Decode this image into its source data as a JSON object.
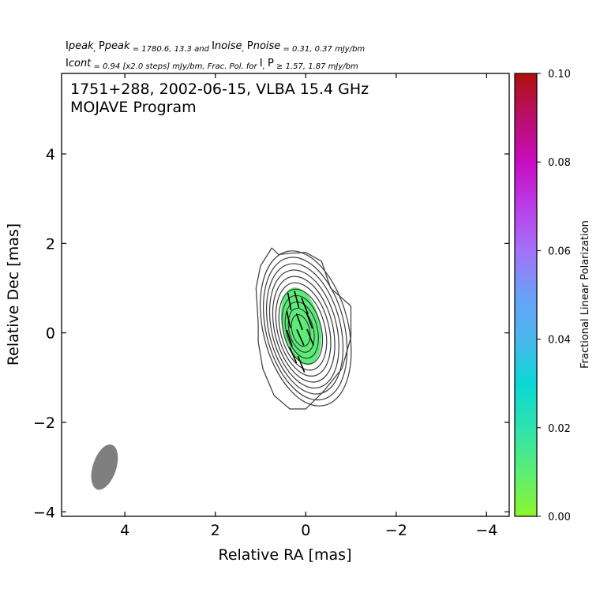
{
  "chart_data": {
    "type": "contour",
    "header": {
      "line1": [
        "I",
        "peak",
        ", ",
        "P",
        "peak",
        " = 1780.6, 13.3 and ",
        "I",
        "noise",
        ", ",
        "P",
        "noise",
        " = 0.31, 0.37 mJy/bm"
      ],
      "line2": [
        "I",
        "cont",
        " = 0.94 [x2.0 steps] mJy/bm, Frac. Pol. for ",
        "I",
        "",
        ", ",
        "P",
        "",
        " ≥ 1.57, 1.87 mJy/bm"
      ]
    },
    "plot_title": {
      "line1": "1751+288, 2002-06-15, VLBA 15.4 GHz",
      "line2": "MOJAVE Program"
    },
    "xlabel": "Relative RA [mas]",
    "ylabel": "Relative Dec [mas]",
    "xlim": [
      5.4,
      -4.5
    ],
    "ylim": [
      -4.1,
      5.8
    ],
    "x_ticks": [
      4,
      2,
      0,
      -2,
      -4
    ],
    "x_tick_labels": [
      "4",
      "2",
      "0",
      "−2",
      "−4"
    ],
    "y_ticks": [
      4,
      2,
      0,
      -2,
      -4
    ],
    "y_tick_labels": [
      "4",
      "2",
      "0",
      "−2",
      "−4"
    ],
    "contour_levels_mJy": [
      0.94,
      1.88,
      3.76,
      7.52,
      15.04,
      30.08,
      60.16,
      120.32,
      240.64,
      481.28,
      962.56
    ],
    "contour_color": "#3a3a3a",
    "beam": {
      "x": 4.45,
      "y": -3.0,
      "major_mas": 1.05,
      "minor_mas": 0.52,
      "pa_deg": -12,
      "color": "#7f7f7f"
    },
    "fractional_polarization_region": {
      "x": 0.1,
      "y": 0.15,
      "value": 0.012,
      "color": "#5aee78"
    },
    "evpa_ticks": [
      {
        "x": 0.36,
        "y": 0.7,
        "angle": -10
      },
      {
        "x": 0.2,
        "y": 0.75,
        "angle": -15
      },
      {
        "x": 0.02,
        "y": 0.6,
        "angle": -22
      },
      {
        "x": 0.38,
        "y": 0.3,
        "angle": -12
      },
      {
        "x": 0.14,
        "y": 0.25,
        "angle": -20
      },
      {
        "x": -0.08,
        "y": 0.28,
        "angle": -20
      },
      {
        "x": 0.36,
        "y": -0.12,
        "angle": -18
      },
      {
        "x": 0.12,
        "y": -0.1,
        "angle": -24
      },
      {
        "x": -0.1,
        "y": -0.1,
        "angle": -22
      },
      {
        "x": 0.28,
        "y": -0.5,
        "angle": -24
      },
      {
        "x": 0.1,
        "y": -0.7,
        "angle": -22
      }
    ],
    "colorbar": {
      "label": "Fractional Linear Polarization",
      "range": [
        0.0,
        0.1
      ],
      "ticks": [
        0.0,
        0.02,
        0.04,
        0.06,
        0.08,
        0.1
      ],
      "tick_labels": [
        "0.00",
        "0.02",
        "0.04",
        "0.06",
        "0.08",
        "0.10"
      ],
      "stops": [
        {
          "v": 0.0,
          "color": "#8cf52c"
        },
        {
          "v": 0.01,
          "color": "#5cee74"
        },
        {
          "v": 0.02,
          "color": "#2ee2b0"
        },
        {
          "v": 0.03,
          "color": "#0ad8d4"
        },
        {
          "v": 0.04,
          "color": "#4ab6ee"
        },
        {
          "v": 0.05,
          "color": "#6aa0f8"
        },
        {
          "v": 0.06,
          "color": "#a472f8"
        },
        {
          "v": 0.07,
          "color": "#bb3ee8"
        },
        {
          "v": 0.08,
          "color": "#c80cc0"
        },
        {
          "v": 0.09,
          "color": "#b8106a"
        },
        {
          "v": 0.1,
          "color": "#b0100a"
        }
      ]
    }
  }
}
